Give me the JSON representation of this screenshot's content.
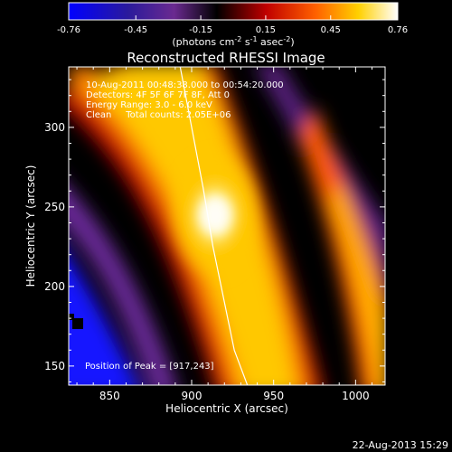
{
  "colorbar": {
    "ticks": [
      "-0.76",
      "-0.45",
      "-0.15",
      "0.15",
      "0.45",
      "0.76"
    ],
    "values": [
      -0.76,
      -0.45,
      -0.15,
      0.15,
      0.45,
      0.76
    ],
    "units_prefix": "(photons cm",
    "units_exp1": "-2",
    "units_mid": " s",
    "units_exp2": "-1",
    "units_mid2": " asec",
    "units_exp3": "-2",
    "units_suffix": ")"
  },
  "chart_data": {
    "type": "heatmap",
    "title": "Reconstructed RHESSI Image",
    "xlabel": "Heliocentric X (arcsec)",
    "ylabel": "Heliocentric Y (arcsec)",
    "xlim": [
      825,
      1018
    ],
    "ylim": [
      138,
      338
    ],
    "x_ticks": [
      "850",
      "900",
      "950",
      "1000"
    ],
    "x_tick_values": [
      850,
      900,
      950,
      1000
    ],
    "y_ticks": [
      "150",
      "200",
      "250",
      "300"
    ],
    "y_tick_values": [
      150,
      200,
      250,
      300
    ],
    "peak": [
      917,
      243
    ],
    "annotations": {
      "time": "10-Aug-2011 00:48:38.000 to 00:54:20.000",
      "detectors": "Detectors: 4F 5F 6F 7F 8F, Att 0",
      "energy": "Energy Range: 3.0 - 6.0 keV",
      "clean": "Clean     Total counts: 2.05E+06",
      "peak_text": "Position of Peak = [917,243]"
    },
    "limb_curve": [
      [
        893,
        338
      ],
      [
        900,
        300
      ],
      [
        907,
        262
      ],
      [
        913,
        225
      ],
      [
        920,
        190
      ],
      [
        926,
        160
      ],
      [
        934,
        138
      ]
    ]
  },
  "footer": {
    "date": "22-Aug-2013 15:29"
  }
}
